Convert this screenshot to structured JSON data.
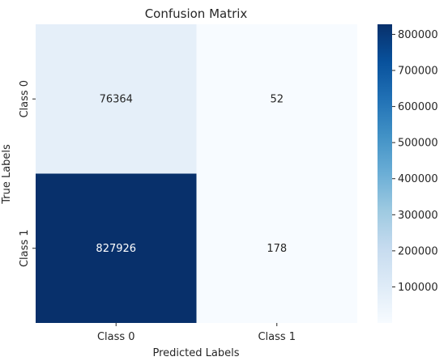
{
  "chart_data": {
    "type": "heatmap",
    "title": "Confusion Matrix",
    "xlabel": "Predicted Labels",
    "ylabel": "True Labels",
    "x_categories": [
      "Class 0",
      "Class 1"
    ],
    "y_categories": [
      "Class 0",
      "Class 1"
    ],
    "values": [
      [
        76364,
        52
      ],
      [
        827926,
        178
      ]
    ],
    "colormap": "Blues",
    "colorbar": {
      "ticks": [
        "100000",
        "200000",
        "300000",
        "400000",
        "500000",
        "600000",
        "700000",
        "800000"
      ],
      "range": [
        52,
        827926
      ]
    }
  }
}
